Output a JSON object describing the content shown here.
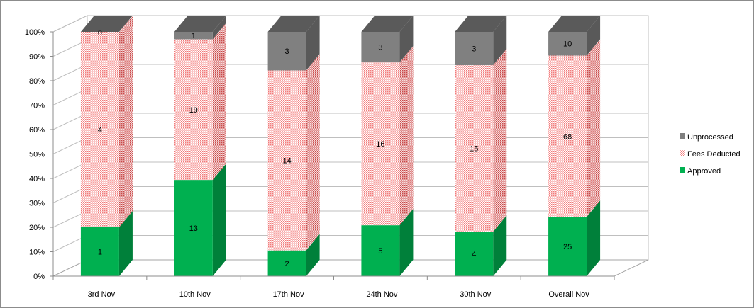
{
  "chart_data": {
    "type": "bar",
    "stacked": "percent",
    "three_d": true,
    "categories": [
      "3rd Nov",
      "10th Nov",
      "17th Nov",
      "24th Nov",
      "30th Nov",
      "Overall Nov"
    ],
    "series": [
      {
        "name": "Approved",
        "values": [
          1,
          13,
          2,
          5,
          4,
          25
        ],
        "color": "#00b050",
        "pattern": "solid"
      },
      {
        "name": "Fees Deducted",
        "values": [
          4,
          19,
          14,
          16,
          15,
          68
        ],
        "color": "#ff9999",
        "pattern": "dotted"
      },
      {
        "name": "Unprocessed",
        "values": [
          0,
          1,
          3,
          3,
          3,
          10
        ],
        "color": "#808080",
        "pattern": "solid"
      }
    ],
    "y_ticks": [
      "0%",
      "10%",
      "20%",
      "30%",
      "40%",
      "50%",
      "60%",
      "70%",
      "80%",
      "90%",
      "100%"
    ],
    "ylim": [
      0,
      100
    ],
    "grid": true,
    "legend_position": "right",
    "title": "",
    "xlabel": "",
    "ylabel": ""
  }
}
